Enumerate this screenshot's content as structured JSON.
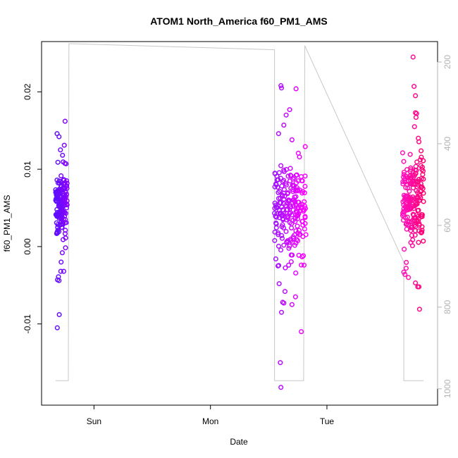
{
  "chart_data": {
    "type": "scatter",
    "title": "ATOM1 North_America f60_PM1_AMS",
    "xlabel": "Date",
    "ylabel": "f60_PM1_AMS",
    "ylim": [
      -0.0205,
      0.0265
    ],
    "y_ticks": [
      -0.01,
      0.0,
      0.01,
      0.02
    ],
    "y_tick_labels": [
      "-0.01",
      "0.00",
      "0.01",
      "0.02"
    ],
    "x_ticks": [
      {
        "day": 1.0,
        "label": "Sun"
      },
      {
        "day": 2.0,
        "label": "Mon"
      },
      {
        "day": 3.0,
        "label": "Tue"
      }
    ],
    "xlim_days": [
      0.55,
      3.95
    ],
    "y2": {
      "label": "",
      "range": [
        1040,
        150
      ],
      "reversed": true,
      "ticks": [
        200,
        400,
        600,
        800,
        1000
      ],
      "tick_labels": [
        "200",
        "400",
        "600",
        "800",
        "1000"
      ],
      "color": "#b3b3b3"
    },
    "grid": false,
    "colors": {
      "early": "#6a00ff",
      "middle": "#f000ff",
      "late": "#ff0080",
      "altitude_line": "#c8c8c8"
    },
    "series": [
      {
        "color_start": "#5a10ff",
        "color_end": "#8a00ff",
        "x_range_days": [
          0.67,
          0.77
        ],
        "anchor_points": [
          [
            0.752,
            0.0162
          ],
          [
            0.683,
            0.0146
          ],
          [
            0.7,
            0.0142
          ],
          [
            0.745,
            0.0131
          ],
          [
            0.712,
            0.0125
          ],
          [
            0.73,
            0.0118
          ],
          [
            0.69,
            0.0109
          ],
          [
            0.76,
            0.0107
          ],
          [
            0.715,
            -0.0032
          ],
          [
            0.695,
            -0.0039
          ],
          [
            0.687,
            -0.0043
          ],
          [
            0.7,
            -0.0044
          ],
          [
            0.74,
            -0.0032
          ],
          [
            0.718,
            -0.002
          ],
          [
            0.728,
            -0.0008
          ],
          [
            0.702,
            -0.0088
          ],
          [
            0.685,
            -0.0105
          ]
        ],
        "bulk_mean": 0.0055,
        "bulk_sd": 0.0022,
        "n_bulk": 150
      },
      {
        "color_start": "#a010ff",
        "color_end": "#ff00ff",
        "x_range_days": [
          2.55,
          2.82
        ],
        "anchor_points": [
          [
            2.605,
            0.0208
          ],
          [
            2.61,
            0.0205
          ],
          [
            2.735,
            0.0204
          ],
          [
            2.68,
            0.0177
          ],
          [
            2.65,
            0.017
          ],
          [
            2.63,
            0.0157
          ],
          [
            2.585,
            0.0146
          ],
          [
            2.7,
            0.0138
          ],
          [
            2.59,
            -0.0048
          ],
          [
            2.64,
            -0.0058
          ],
          [
            2.58,
            -0.0025
          ],
          [
            2.62,
            -0.0072
          ],
          [
            2.63,
            -0.0073
          ],
          [
            2.61,
            -0.0085
          ],
          [
            2.73,
            -0.0065
          ],
          [
            2.7,
            -0.0075
          ],
          [
            2.78,
            -0.011
          ],
          [
            2.6,
            -0.015
          ],
          [
            2.605,
            -0.0182
          ]
        ],
        "bulk_mean": 0.005,
        "bulk_sd": 0.003,
        "n_bulk": 210
      },
      {
        "color_start": "#ff10c0",
        "color_end": "#ff0070",
        "x_range_days": [
          3.65,
          3.83
        ],
        "anchor_points": [
          [
            3.74,
            0.0245
          ],
          [
            3.748,
            0.0207
          ],
          [
            3.76,
            0.0195
          ],
          [
            3.76,
            0.0173
          ],
          [
            3.77,
            0.0172
          ],
          [
            3.765,
            0.0167
          ],
          [
            3.752,
            0.0155
          ],
          [
            3.785,
            0.014
          ],
          [
            3.7,
            -0.004
          ],
          [
            3.66,
            -0.0033
          ],
          [
            3.67,
            -0.0036
          ],
          [
            3.76,
            -0.0047
          ],
          [
            3.78,
            -0.0052
          ],
          [
            3.79,
            -0.0052
          ],
          [
            3.795,
            -0.0081
          ],
          [
            3.68,
            -0.0028
          ]
        ],
        "bulk_mean": 0.006,
        "bulk_sd": 0.0028,
        "n_bulk": 190
      }
    ],
    "altitude_line": {
      "description_only_in_script": true
    }
  }
}
